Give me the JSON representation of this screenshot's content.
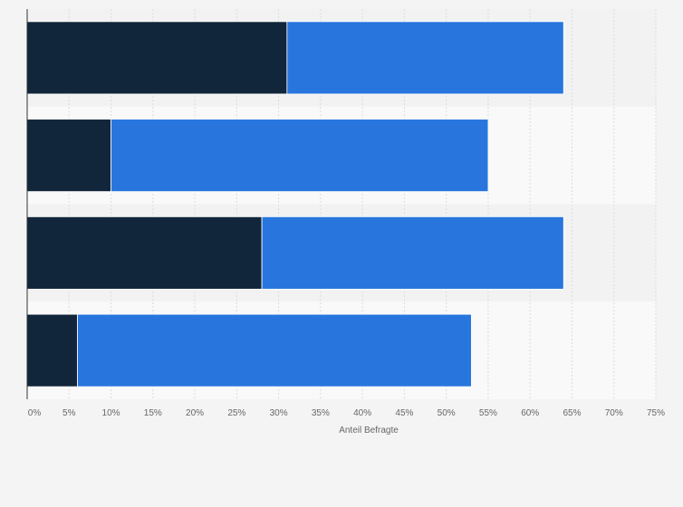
{
  "chart_data": {
    "type": "bar",
    "orientation": "horizontal",
    "stacked": true,
    "categories": [
      "",
      "",
      "",
      ""
    ],
    "series": [
      {
        "values": [
          31,
          10,
          28,
          6
        ]
      },
      {
        "values": [
          33,
          45,
          36,
          47
        ]
      }
    ],
    "title": "",
    "xlabel": "Anteil Befragte",
    "ylabel": "",
    "xlim": [
      0,
      75
    ],
    "xticks": [
      "0%",
      "5%",
      "10%",
      "15%",
      "20%",
      "25%",
      "30%",
      "35%",
      "40%",
      "45%",
      "50%",
      "55%",
      "60%",
      "65%",
      "70%",
      "75%"
    ],
    "grid": "vertical",
    "legend": "none",
    "colors": {
      "series": [
        "#12263b",
        "#2876dd"
      ],
      "band_a": "#f2f2f2",
      "band_b": "#f9f9f9",
      "grid": "#dcdcdc",
      "axis": "#333333"
    }
  }
}
